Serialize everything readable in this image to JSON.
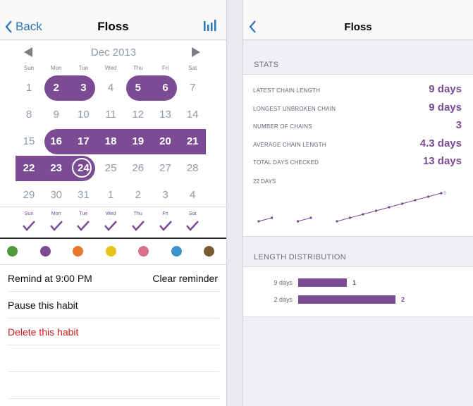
{
  "left": {
    "nav": {
      "back_label": "Back",
      "title": "Floss"
    },
    "calendar": {
      "month_label": "Dec 2013",
      "weekdays": [
        "Sun",
        "Mon",
        "Tue",
        "Wed",
        "Thu",
        "Fri",
        "Sat"
      ],
      "weeks": [
        [
          "1",
          "2",
          "3",
          "4",
          "5",
          "6",
          "7"
        ],
        [
          "8",
          "9",
          "10",
          "11",
          "12",
          "13",
          "14"
        ],
        [
          "15",
          "16",
          "17",
          "18",
          "19",
          "20",
          "21"
        ],
        [
          "22",
          "23",
          "24",
          "25",
          "26",
          "27",
          "28"
        ],
        [
          "29",
          "30",
          "31",
          "1",
          "2",
          "3",
          "4"
        ]
      ],
      "checked_days": [
        "2",
        "3",
        "5",
        "6",
        "16",
        "17",
        "18",
        "19",
        "20",
        "21",
        "22",
        "23",
        "24"
      ],
      "today": "24",
      "accent": "#7b4b94"
    },
    "weekly_checks": {
      "labels": [
        "Sun",
        "Mon",
        "Tue",
        "Wed",
        "Thu",
        "Fri",
        "Sat"
      ]
    },
    "colors": [
      "#4e9b3e",
      "#7b4b94",
      "#e8782e",
      "#e8c619",
      "#d86f8b",
      "#3d92c9",
      "#7a5b33"
    ],
    "menu": {
      "remind": "Remind at 9:00 PM",
      "clear_reminder": "Clear reminder",
      "pause": "Pause this habit",
      "delete": "Delete this habit"
    }
  },
  "right": {
    "nav": {
      "title": "Floss"
    },
    "stats": {
      "header": "STATS",
      "items": [
        {
          "label": "LATEST CHAIN LENGTH",
          "value": "9 days"
        },
        {
          "label": "LONGEST UNBROKEN CHAIN",
          "value": "9 days"
        },
        {
          "label": "NUMBER OF CHAINS",
          "value": "3"
        },
        {
          "label": "AVERAGE CHAIN LENGTH",
          "value": "4.3 days"
        },
        {
          "label": "TOTAL DAYS CHECKED",
          "value": "13 days"
        }
      ],
      "sparkline_label": "22 DAYS",
      "sparkline_end_label": "9"
    },
    "distribution": {
      "header": "LENGTH DISTRIBUTION",
      "rows": [
        {
          "label": "9 days",
          "count": "1",
          "value": 1
        },
        {
          "label": "2 days",
          "count": "2",
          "value": 2
        }
      ]
    }
  },
  "chart_data": {
    "type": "line",
    "title": "22 DAYS",
    "segments": [
      {
        "x": [
          1,
          2
        ],
        "y": [
          1,
          2
        ]
      },
      {
        "x": [
          4,
          5
        ],
        "y": [
          1,
          2
        ]
      },
      {
        "x": [
          7,
          8,
          9,
          10,
          11,
          12,
          13,
          14,
          15
        ],
        "y": [
          1,
          2,
          3,
          4,
          5,
          6,
          7,
          8,
          9
        ]
      }
    ],
    "end_label": "9"
  }
}
